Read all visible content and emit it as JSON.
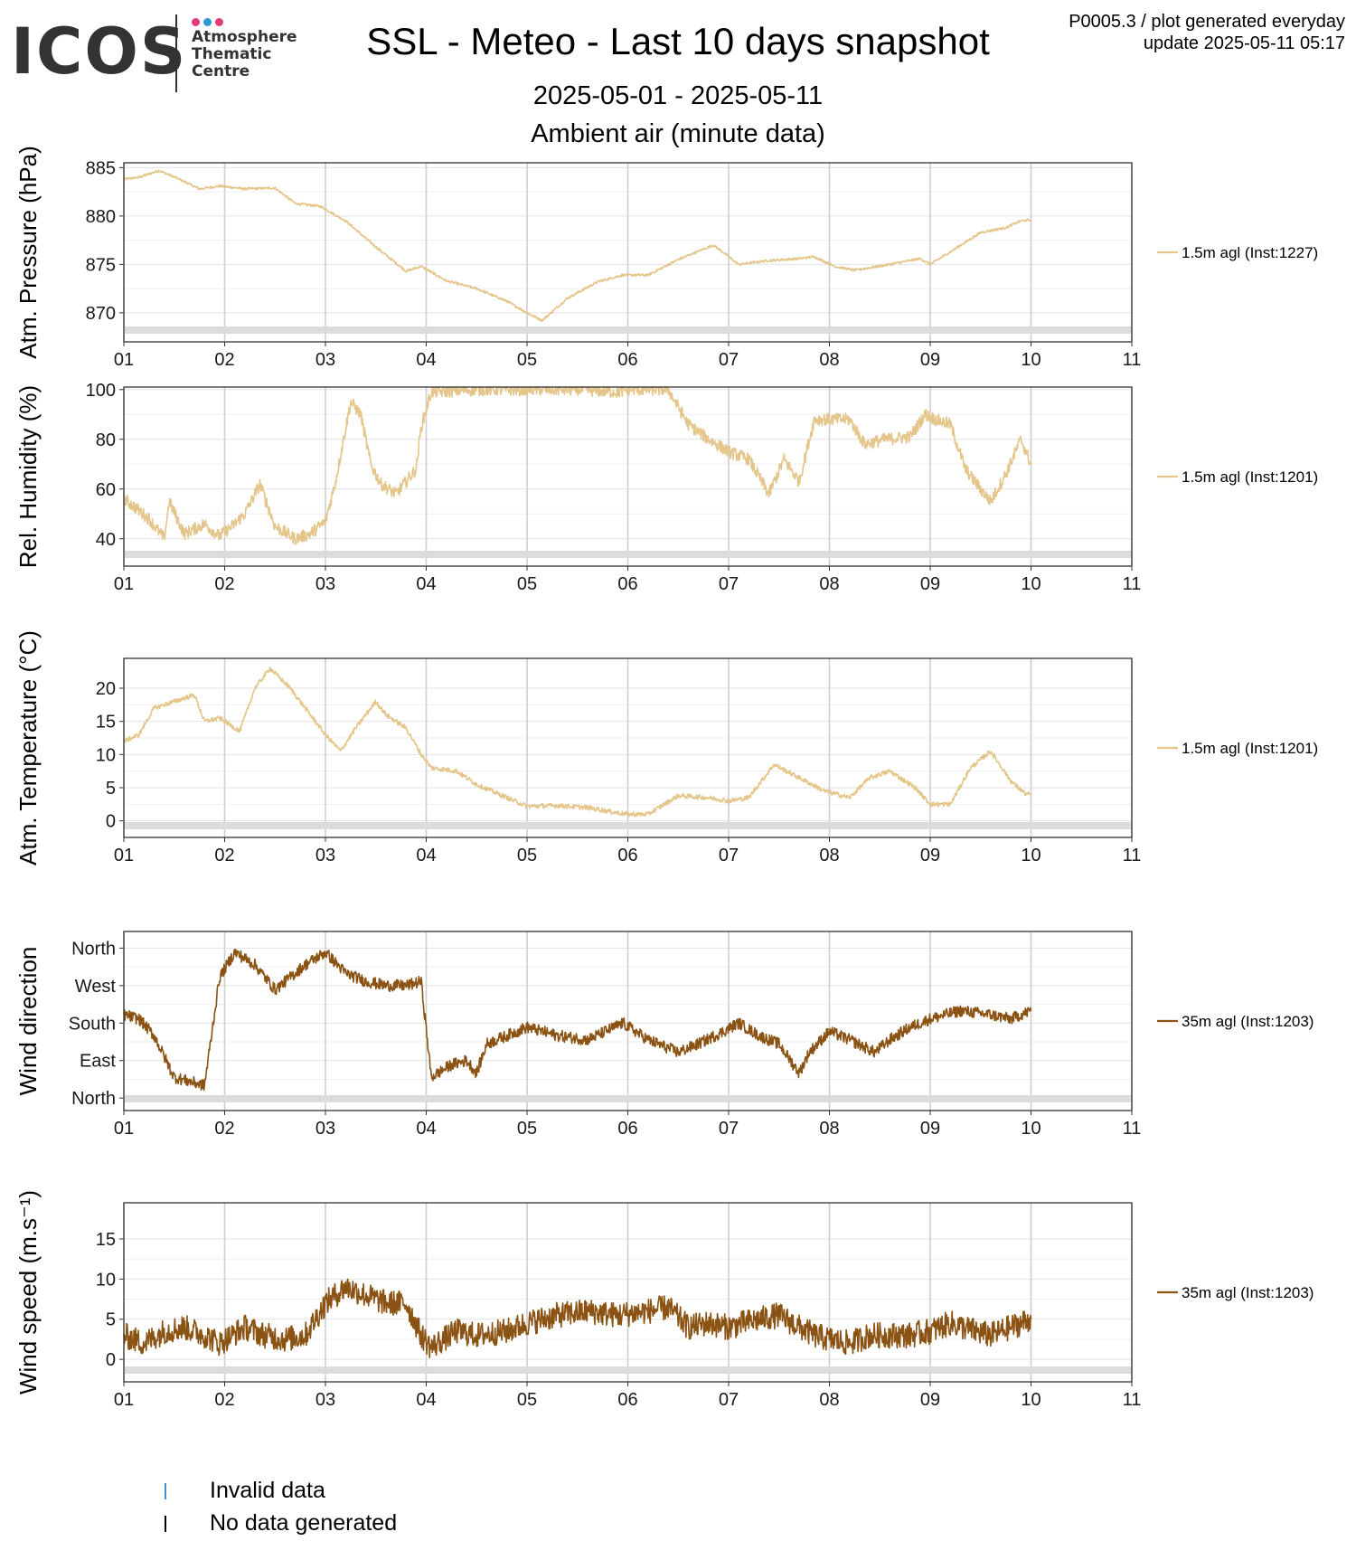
{
  "logo": {
    "name": "ICOS",
    "sub": [
      "Atmosphere",
      "Thematic",
      "Centre"
    ],
    "dot_colors": [
      "#e6397a",
      "#2b9ad8",
      "#e6397a"
    ]
  },
  "header": {
    "title": "SSL - Meteo - Last 10 days snapshot",
    "subtitle": "2025-05-01 - 2025-05-11",
    "section": "Ambient air (minute data)",
    "info_line1": "P0005.3 / plot generated everyday",
    "info_line2": "update  2025-05-11 05:17"
  },
  "legend": {
    "items": [
      {
        "label": "Invalid data",
        "color": "#4a8fd4"
      },
      {
        "label": "No data generated",
        "color": "#000000"
      }
    ]
  },
  "chart_data": [
    {
      "type": "line",
      "ylabel": "Atm. Pressure (hPa)",
      "x_ticks": [
        "01",
        "02",
        "03",
        "04",
        "05",
        "06",
        "07",
        "08",
        "09",
        "10",
        "11"
      ],
      "xlim": [
        1,
        11
      ],
      "ylim": [
        867,
        885.5
      ],
      "y_ticks": [
        870,
        875,
        880,
        885
      ],
      "color": "#e4c58a",
      "series_name": "1.5m agl (Inst:1227)",
      "noise": 0.12,
      "x": [
        1.0,
        1.15,
        1.35,
        1.55,
        1.75,
        1.95,
        2.2,
        2.5,
        2.7,
        2.95,
        3.2,
        3.5,
        3.8,
        3.95,
        4.2,
        4.5,
        4.8,
        5.0,
        5.15,
        5.4,
        5.7,
        5.95,
        6.2,
        6.5,
        6.85,
        7.1,
        7.4,
        7.7,
        7.85,
        8.05,
        8.25,
        8.6,
        8.9,
        9.0,
        9.2,
        9.5,
        9.75,
        9.9,
        10.0
      ],
      "y": [
        883.8,
        884.0,
        884.7,
        883.8,
        882.8,
        883.1,
        882.8,
        882.9,
        881.3,
        881.0,
        879.5,
        876.8,
        874.3,
        874.8,
        873.3,
        872.5,
        871.2,
        870.0,
        869.2,
        871.5,
        873.2,
        873.9,
        873.9,
        875.5,
        877.0,
        875.0,
        875.4,
        875.6,
        875.8,
        874.8,
        874.4,
        875.0,
        875.6,
        875.0,
        876.3,
        878.3,
        878.8,
        879.5,
        879.6
      ]
    },
    {
      "type": "line",
      "ylabel": "Rel. Humidity (%)",
      "x_ticks": [
        "01",
        "02",
        "03",
        "04",
        "05",
        "06",
        "07",
        "08",
        "09",
        "10",
        "11"
      ],
      "xlim": [
        1,
        11
      ],
      "ylim": [
        29,
        101
      ],
      "y_ticks": [
        40,
        60,
        80,
        100
      ],
      "color": "#e4c58a",
      "series_name": "1.5m agl (Inst:1201)",
      "noise": 2.5,
      "x": [
        1.0,
        1.1,
        1.25,
        1.4,
        1.45,
        1.6,
        1.8,
        1.95,
        2.1,
        2.2,
        2.35,
        2.5,
        2.7,
        2.85,
        3.0,
        3.1,
        3.25,
        3.35,
        3.45,
        3.55,
        3.7,
        3.9,
        3.95,
        4.05,
        4.5,
        5.0,
        5.5,
        5.9,
        6.0,
        6.4,
        6.6,
        6.8,
        7.0,
        7.2,
        7.4,
        7.55,
        7.7,
        7.85,
        8.0,
        8.2,
        8.35,
        8.55,
        8.8,
        8.95,
        9.05,
        9.2,
        9.35,
        9.5,
        9.6,
        9.75,
        9.9,
        10.0
      ],
      "y": [
        56,
        53,
        48,
        40,
        55,
        42,
        46,
        41,
        46,
        50,
        62,
        45,
        40,
        42,
        47,
        63,
        95,
        90,
        70,
        62,
        58,
        68,
        85,
        99,
        100,
        100,
        100,
        99,
        100,
        100,
        86,
        80,
        75,
        72,
        58,
        72,
        63,
        88,
        88,
        88,
        78,
        80,
        81,
        90,
        88,
        86,
        68,
        60,
        55,
        66,
        80,
        70
      ]
    },
    {
      "type": "line",
      "ylabel": "Atm. Temperature (°C)",
      "x_ticks": [
        "01",
        "02",
        "03",
        "04",
        "05",
        "06",
        "07",
        "08",
        "09",
        "10",
        "11"
      ],
      "xlim": [
        1,
        11
      ],
      "ylim": [
        -2.5,
        24.5
      ],
      "y_ticks": [
        0,
        5,
        10,
        15,
        20
      ],
      "color": "#e4c58a",
      "series_name": "1.5m agl (Inst:1201)",
      "noise": 0.35,
      "x": [
        1.0,
        1.15,
        1.3,
        1.5,
        1.7,
        1.8,
        1.95,
        2.15,
        2.3,
        2.45,
        2.65,
        2.85,
        3.0,
        3.15,
        3.3,
        3.4,
        3.5,
        3.6,
        3.8,
        3.95,
        4.05,
        4.3,
        4.5,
        4.8,
        5.0,
        5.3,
        5.6,
        5.9,
        6.0,
        6.2,
        6.5,
        6.8,
        7.0,
        7.2,
        7.45,
        7.7,
        7.95,
        8.2,
        8.4,
        8.6,
        8.85,
        9.0,
        9.2,
        9.4,
        9.6,
        9.8,
        9.95,
        10.0
      ],
      "y": [
        12,
        13,
        17,
        18,
        19,
        15,
        15.5,
        13.5,
        20,
        23,
        20,
        16,
        13,
        10.5,
        14,
        16,
        18,
        16,
        14,
        10,
        8,
        7.5,
        5.5,
        3.5,
        2.2,
        2.3,
        2,
        1.2,
        1,
        1,
        3.8,
        3.5,
        3,
        3.5,
        8.5,
        6.5,
        4.5,
        3.5,
        6.5,
        7.5,
        5,
        2.5,
        2.5,
        8,
        10.5,
        6,
        4,
        4
      ]
    },
    {
      "type": "line",
      "ylabel": "Wind direction",
      "x_ticks": [
        "01",
        "02",
        "03",
        "04",
        "05",
        "06",
        "07",
        "08",
        "09",
        "10",
        "11"
      ],
      "xlim": [
        1,
        11
      ],
      "ylim": [
        -30,
        400
      ],
      "y_ticks": [
        0,
        90,
        180,
        270,
        360
      ],
      "y_tick_labels": [
        "North",
        "East",
        "South",
        "West",
        "North"
      ],
      "color": "#8b5313",
      "series_name": "35m agl (Inst:1203)",
      "noise": 14,
      "x": [
        1.0,
        1.15,
        1.3,
        1.5,
        1.8,
        1.95,
        2.1,
        2.3,
        2.5,
        2.8,
        3.0,
        3.2,
        3.4,
        3.6,
        3.8,
        3.95,
        4.05,
        4.25,
        4.4,
        4.5,
        4.6,
        4.8,
        5.0,
        5.3,
        5.6,
        5.95,
        6.2,
        6.5,
        6.7,
        6.95,
        7.1,
        7.3,
        7.5,
        7.7,
        7.8,
        8.0,
        8.2,
        8.45,
        8.6,
        8.8,
        9.0,
        9.3,
        9.6,
        9.8,
        10.0
      ],
      "y": [
        200,
        190,
        150,
        50,
        30,
        290,
        350,
        320,
        260,
        320,
        350,
        300,
        280,
        270,
        270,
        280,
        50,
        80,
        90,
        60,
        130,
        150,
        170,
        150,
        140,
        180,
        140,
        110,
        130,
        160,
        180,
        150,
        130,
        60,
        110,
        160,
        140,
        110,
        140,
        170,
        190,
        210,
        200,
        190,
        210
      ]
    },
    {
      "type": "line",
      "ylabel": "Wind speed (m.s⁻¹)",
      "x_ticks": [
        "01",
        "02",
        "03",
        "04",
        "05",
        "06",
        "07",
        "08",
        "09",
        "10",
        "11"
      ],
      "xlim": [
        1,
        11
      ],
      "ylim": [
        -2.8,
        19.5
      ],
      "y_ticks": [
        0,
        5,
        10,
        15
      ],
      "color": "#8b5313",
      "series_name": "35m agl (Inst:1203)",
      "noise": 1.6,
      "x": [
        1.0,
        1.2,
        1.4,
        1.6,
        1.8,
        1.95,
        2.2,
        2.4,
        2.6,
        2.8,
        3.0,
        3.2,
        3.4,
        3.6,
        3.8,
        3.95,
        4.05,
        4.3,
        4.5,
        4.8,
        5.0,
        5.3,
        5.6,
        5.9,
        6.2,
        6.4,
        6.6,
        6.8,
        7.0,
        7.3,
        7.5,
        7.7,
        7.85,
        8.0,
        8.2,
        8.4,
        8.6,
        8.8,
        9.0,
        9.2,
        9.45,
        9.6,
        9.8,
        10.0
      ],
      "y": [
        3,
        2,
        3.5,
        4,
        3,
        2,
        4,
        3,
        2.5,
        3,
        7,
        9,
        8,
        7,
        7,
        3,
        1.5,
        3.5,
        3,
        3.5,
        4.5,
        5.5,
        6,
        5.5,
        6,
        6.5,
        4,
        4.5,
        4,
        5,
        5.5,
        4,
        3,
        2.5,
        2,
        3,
        3,
        3,
        3.5,
        4.5,
        3.5,
        3,
        4,
        5
      ]
    }
  ]
}
